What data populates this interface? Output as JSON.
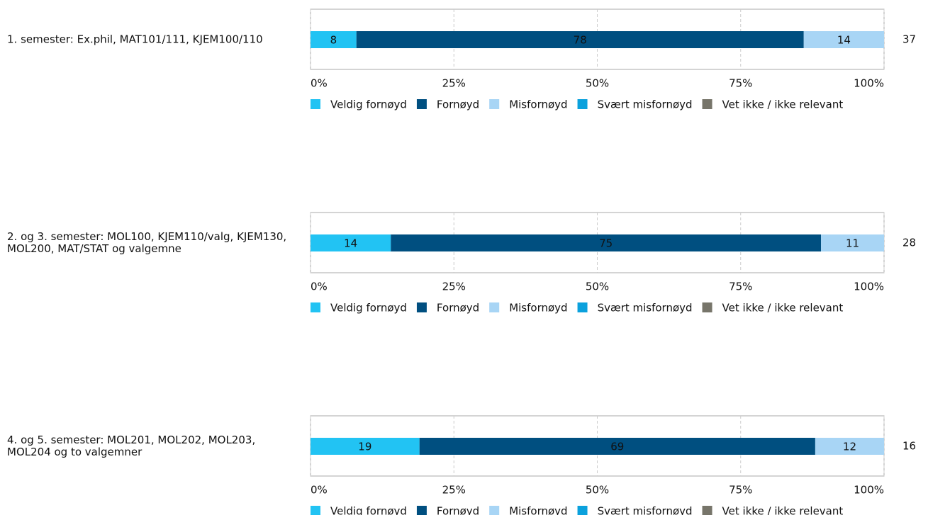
{
  "chart_data": [
    {
      "type": "bar",
      "categories": [
        "1. semester: Ex.phil, MAT101/111, KJEM100/110"
      ],
      "n": 37,
      "series": [
        {
          "name": "Veldig fornøyd",
          "color": "#22c3f3",
          "values": [
            8
          ]
        },
        {
          "name": "Fornøyd",
          "color": "#004f80",
          "values": [
            78
          ]
        },
        {
          "name": "Misfornøyd",
          "color": "#a8d5f5",
          "values": [
            14
          ]
        },
        {
          "name": "Svært misfornøyd",
          "color": "#0ba1dd",
          "values": [
            0
          ]
        },
        {
          "name": "Vet ikke / ikke relevant",
          "color": "#77756a",
          "values": [
            0
          ]
        }
      ],
      "xlim": [
        0,
        100
      ],
      "xticks": [
        {
          "value": 0,
          "label": "0%"
        },
        {
          "value": 25,
          "label": "25%"
        },
        {
          "value": 50,
          "label": "50%"
        },
        {
          "value": 75,
          "label": "75%"
        },
        {
          "value": 100,
          "label": "100%"
        }
      ],
      "grid": true,
      "legend": "bottom"
    },
    {
      "type": "bar",
      "categories": [
        "2. og 3. semester: MOL100, KJEM110/valg, KJEM130, MOL200, MAT/STAT og valgemne"
      ],
      "n": 28,
      "series": [
        {
          "name": "Veldig fornøyd",
          "color": "#22c3f3",
          "values": [
            14
          ]
        },
        {
          "name": "Fornøyd",
          "color": "#004f80",
          "values": [
            75
          ]
        },
        {
          "name": "Misfornøyd",
          "color": "#a8d5f5",
          "values": [
            11
          ]
        },
        {
          "name": "Svært misfornøyd",
          "color": "#0ba1dd",
          "values": [
            0
          ]
        },
        {
          "name": "Vet ikke / ikke relevant",
          "color": "#77756a",
          "values": [
            0
          ]
        }
      ],
      "xlim": [
        0,
        100
      ],
      "xticks": [
        {
          "value": 0,
          "label": "0%"
        },
        {
          "value": 25,
          "label": "25%"
        },
        {
          "value": 50,
          "label": "50%"
        },
        {
          "value": 75,
          "label": "75%"
        },
        {
          "value": 100,
          "label": "100%"
        }
      ],
      "grid": true,
      "legend": "bottom"
    },
    {
      "type": "bar",
      "categories": [
        "4. og 5. semester: MOL201, MOL202, MOL203, MOL204 og to valgemner"
      ],
      "n": 16,
      "series": [
        {
          "name": "Veldig fornøyd",
          "color": "#22c3f3",
          "values": [
            19
          ]
        },
        {
          "name": "Fornøyd",
          "color": "#004f80",
          "values": [
            69
          ]
        },
        {
          "name": "Misfornøyd",
          "color": "#a8d5f5",
          "values": [
            12
          ]
        },
        {
          "name": "Svært misfornøyd",
          "color": "#0ba1dd",
          "values": [
            0
          ]
        },
        {
          "name": "Vet ikke / ikke relevant",
          "color": "#77756a",
          "values": [
            0
          ]
        }
      ],
      "xlim": [
        0,
        100
      ],
      "xticks": [
        {
          "value": 0,
          "label": "0%"
        },
        {
          "value": 25,
          "label": "25%"
        },
        {
          "value": 50,
          "label": "50%"
        },
        {
          "value": 75,
          "label": "75%"
        },
        {
          "value": 100,
          "label": "100%"
        }
      ],
      "grid": true,
      "legend": "bottom"
    }
  ]
}
